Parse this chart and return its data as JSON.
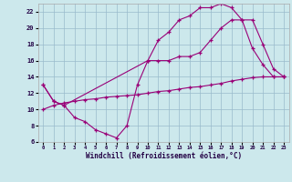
{
  "bg_color": "#cce8ec",
  "line_color": "#990077",
  "grid_color": "#99bbcc",
  "xlabel": "Windchill (Refroidissement éolien,°C)",
  "xlim": [
    -0.5,
    23.5
  ],
  "ylim": [
    6,
    23
  ],
  "yticks": [
    6,
    8,
    10,
    12,
    14,
    16,
    18,
    20,
    22
  ],
  "xticks": [
    0,
    1,
    2,
    3,
    4,
    5,
    6,
    7,
    8,
    9,
    10,
    11,
    12,
    13,
    14,
    15,
    16,
    17,
    18,
    19,
    20,
    21,
    22,
    23
  ],
  "line1_x": [
    0,
    1,
    2,
    10,
    11,
    12,
    13,
    14,
    15,
    16,
    17,
    18,
    19,
    20,
    21,
    22,
    23
  ],
  "line1_y": [
    13,
    11,
    10.5,
    16,
    18.5,
    19.5,
    21,
    21.5,
    22.5,
    22.5,
    23,
    22.5,
    21,
    17.5,
    15.5,
    14,
    14
  ],
  "line2_x": [
    0,
    1,
    2,
    3,
    4,
    5,
    6,
    7,
    8,
    9,
    10,
    11,
    12,
    13,
    14,
    15,
    16,
    17,
    18,
    19,
    20,
    21,
    22,
    23
  ],
  "line2_y": [
    13,
    11,
    10.5,
    9,
    8.5,
    7.5,
    7,
    6.5,
    8,
    13,
    16,
    16,
    16,
    16.5,
    16.5,
    17,
    18.5,
    20,
    21,
    21,
    21,
    18,
    15,
    14
  ],
  "line3_x": [
    0,
    1,
    2,
    3,
    4,
    5,
    6,
    7,
    8,
    9,
    10,
    11,
    12,
    13,
    14,
    15,
    16,
    17,
    18,
    19,
    20,
    21,
    22,
    23
  ],
  "line3_y": [
    10,
    10.5,
    10.8,
    11,
    11.2,
    11.3,
    11.5,
    11.6,
    11.7,
    11.8,
    12,
    12.2,
    12.3,
    12.5,
    12.7,
    12.8,
    13,
    13.2,
    13.5,
    13.7,
    13.9,
    14,
    14,
    14
  ]
}
